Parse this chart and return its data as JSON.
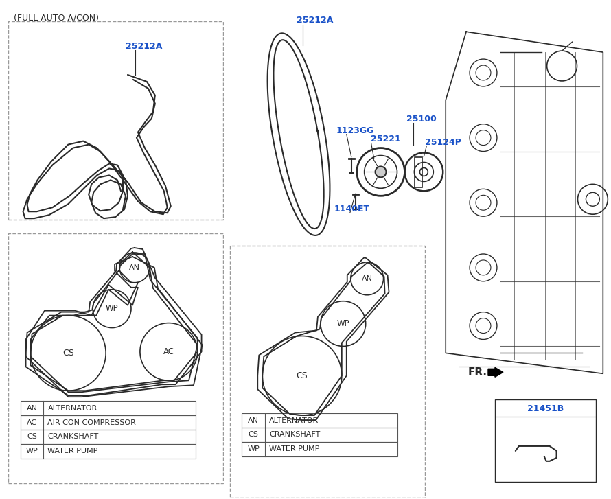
{
  "bg_color": "#ffffff",
  "line_color": "#2a2a2a",
  "blue_color": "#1a52c8",
  "dashed_box_color": "#999999",
  "title_text": "(FULL AUTO A/CON)",
  "legend_left": [
    [
      "AN",
      "ALTERNATOR"
    ],
    [
      "AC",
      "AIR CON COMPRESSOR"
    ],
    [
      "CS",
      "CRANKSHAFT"
    ],
    [
      "WP",
      "WATER PUMP"
    ]
  ],
  "legend_right": [
    [
      "AN",
      "ALTERNATOR"
    ],
    [
      "CS",
      "CRANKSHAFT"
    ],
    [
      "WP",
      "WATER PUMP"
    ]
  ],
  "fr_label": "FR.",
  "pulleys_left4": {
    "AN": [
      195,
      390,
      22
    ],
    "WP": [
      162,
      448,
      28
    ],
    "CS": [
      100,
      510,
      55
    ],
    "AC": [
      245,
      510,
      42
    ]
  },
  "pulleys_right3": {
    "AN": [
      535,
      408,
      22
    ],
    "WP": [
      502,
      468,
      30
    ],
    "CS": [
      445,
      540,
      55
    ]
  }
}
